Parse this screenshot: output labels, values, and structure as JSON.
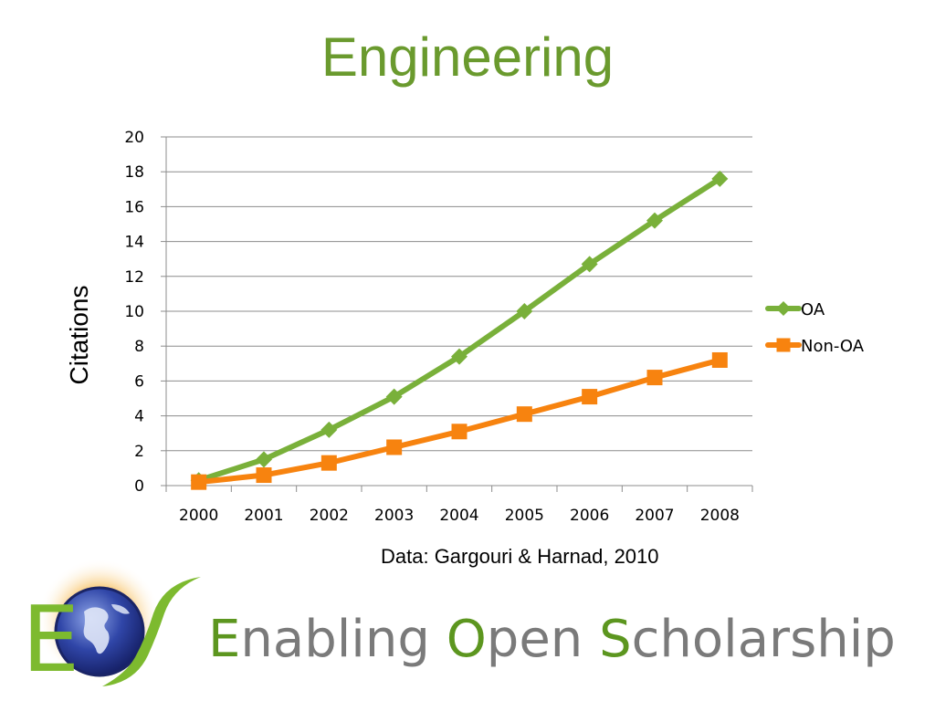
{
  "slide": {
    "title": "Engineering",
    "source_note": "Data: Gargouri & Harnad, 2010",
    "footer": {
      "initial_1": "E",
      "rest_1": "nabling ",
      "initial_2": "O",
      "rest_2": "pen ",
      "initial_3": "S",
      "rest_3": "cholarship"
    },
    "logo": {
      "letter_left": "E",
      "letter_right": "S"
    }
  },
  "chart_data": {
    "type": "line",
    "title": "",
    "xlabel": "",
    "ylabel": "Citations",
    "categories": [
      "2000",
      "2001",
      "2002",
      "2003",
      "2004",
      "2005",
      "2006",
      "2007",
      "2008"
    ],
    "ylim": [
      0,
      20
    ],
    "yticks": [
      0,
      2,
      4,
      6,
      8,
      10,
      12,
      14,
      16,
      18,
      20
    ],
    "grid": true,
    "legend_position": "right",
    "series": [
      {
        "name": "OA",
        "color": "#79b03a",
        "marker": "diamond",
        "values": [
          0.3,
          1.5,
          3.2,
          5.1,
          7.4,
          10.0,
          12.7,
          15.2,
          17.6
        ]
      },
      {
        "name": "Non-OA",
        "color": "#f7830f",
        "marker": "square",
        "values": [
          0.2,
          0.6,
          1.3,
          2.2,
          3.1,
          4.1,
          5.1,
          6.2,
          7.2
        ]
      }
    ]
  }
}
